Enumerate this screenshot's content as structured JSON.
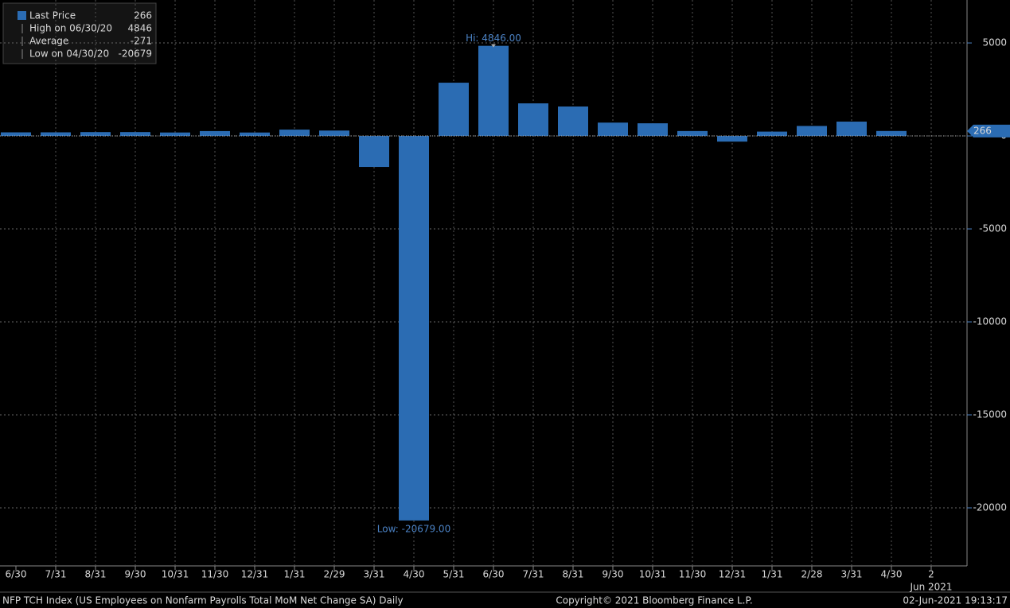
{
  "chart_data": {
    "type": "bar",
    "categories": [
      "6/30",
      "7/31",
      "8/31",
      "9/30",
      "10/31",
      "11/30",
      "12/31",
      "1/31",
      "2/29",
      "3/31",
      "4/30",
      "5/31",
      "6/30",
      "7/31",
      "8/31",
      "9/30",
      "10/31",
      "11/30",
      "12/31",
      "1/31",
      "2/28",
      "3/31",
      "4/30",
      "2"
    ],
    "x_sublabel": "Jun 2021",
    "series": [
      {
        "name": "Last Price",
        "color": "#2b6cb3",
        "values": [
          193,
          194,
          207,
          208,
          185,
          261,
          184,
          340,
          289,
          -1667,
          -20679,
          2863,
          4846,
          1752,
          1583,
          716,
          680,
          264,
          -306,
          233,
          536,
          770,
          266,
          null
        ]
      }
    ],
    "legend": [
      {
        "label": "Last Price",
        "value": 266
      },
      {
        "label": "High on 06/30/20",
        "value": 4846
      },
      {
        "label": "Average",
        "value": -271
      },
      {
        "label": "Low on 04/30/20",
        "value": -20679
      }
    ],
    "annotations": {
      "high": "Hi: 4846.00",
      "low": "Low: -20679.00"
    },
    "ylim": [
      -23120,
      7310
    ],
    "yticks": [
      5000,
      0,
      -5000,
      -10000,
      -15000,
      -20000
    ],
    "grid": true,
    "footer": {
      "left": "NFP TCH Index (US Employees on Nonfarm Payrolls Total MoM Net Change SA)  Daily",
      "center": "Copyright© 2021 Bloomberg Finance L.P.",
      "right": "02-Jun-2021 19:13:17"
    }
  }
}
